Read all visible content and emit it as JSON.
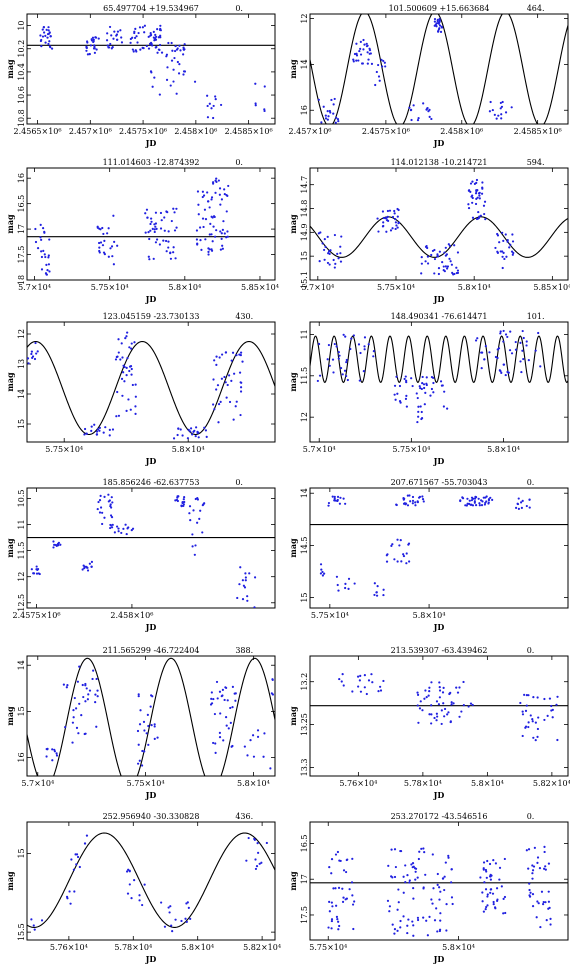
{
  "panels": [
    {
      "title": "65.497704 +19.534967",
      "period": "0.",
      "xlabel": "JD",
      "ylabel": "mag",
      "xlim": [
        2456400,
        2458750
      ],
      "ylim": [
        10.85,
        9.9
      ],
      "xticks": [
        {
          "v": 2456500,
          "label": "2.4565×10⁶"
        },
        {
          "v": 2457000,
          "label": "2.457×10⁶"
        },
        {
          "v": 2457500,
          "label": "2.4575×10⁶"
        },
        {
          "v": 2458000,
          "label": "2.458×10⁶"
        },
        {
          "v": 2458500,
          "label": "2.4585×10⁶"
        }
      ],
      "yticks": [
        {
          "v": 10,
          "label": "10"
        },
        {
          "v": 10.2,
          "label": "10.2"
        },
        {
          "v": 10.4,
          "label": "10.4"
        },
        {
          "v": 10.6,
          "label": "10.6"
        },
        {
          "v": 10.8,
          "label": "10.8"
        }
      ],
      "model": {
        "type": "flat",
        "mean": 10.17,
        "amp": 0,
        "period": 0,
        "phase": 0
      },
      "clusters": [
        {
          "x0": 2456520,
          "x1": 2456640,
          "y0": 10.0,
          "y1": 10.2,
          "n": 25
        },
        {
          "x0": 2456960,
          "x1": 2457080,
          "y0": 10.1,
          "y1": 10.25,
          "n": 25
        },
        {
          "x0": 2457150,
          "x1": 2457300,
          "y0": 10.0,
          "y1": 10.2,
          "n": 20
        },
        {
          "x0": 2457380,
          "x1": 2457680,
          "y0": 10.0,
          "y1": 10.25,
          "n": 55
        },
        {
          "x0": 2457720,
          "x1": 2457900,
          "y0": 10.15,
          "y1": 10.4,
          "n": 25
        },
        {
          "x0": 2457550,
          "x1": 2458000,
          "y0": 10.3,
          "y1": 10.6,
          "n": 12
        },
        {
          "x0": 2458100,
          "x1": 2458250,
          "y0": 10.6,
          "y1": 10.85,
          "n": 10
        },
        {
          "x0": 2458560,
          "x1": 2458660,
          "y0": 10.5,
          "y1": 10.75,
          "n": 6
        }
      ]
    },
    {
      "title": "101.500609 +15.663684",
      "period": "464.",
      "xlabel": "JD",
      "ylabel": "mag",
      "xlim": [
        2457000,
        2458700
      ],
      "ylim": [
        16.6,
        11.8
      ],
      "xticks": [
        {
          "v": 2457000,
          "label": "2.457×10⁶"
        },
        {
          "v": 2457500,
          "label": "2.4575×10⁶"
        },
        {
          "v": 2458000,
          "label": "2.458×10⁶"
        },
        {
          "v": 2458500,
          "label": "2.4585×10⁶"
        }
      ],
      "yticks": [
        {
          "v": 12,
          "label": "12"
        },
        {
          "v": 14,
          "label": "14"
        },
        {
          "v": 16,
          "label": "16"
        }
      ],
      "model": {
        "type": "sine",
        "mean": 14.2,
        "amp": 2.5,
        "period": 464,
        "phase": 2457360
      },
      "clusters": [
        {
          "x0": 2457050,
          "x1": 2457200,
          "y0": 15.5,
          "y1": 16.6,
          "n": 18
        },
        {
          "x0": 2457280,
          "x1": 2457420,
          "y0": 12.9,
          "y1": 14.0,
          "n": 28
        },
        {
          "x0": 2457420,
          "x1": 2457500,
          "y0": 13.5,
          "y1": 15.0,
          "n": 10
        },
        {
          "x0": 2457650,
          "x1": 2457800,
          "y0": 15.5,
          "y1": 16.5,
          "n": 15
        },
        {
          "x0": 2457820,
          "x1": 2457870,
          "y0": 11.9,
          "y1": 12.6,
          "n": 22
        },
        {
          "x0": 2458180,
          "x1": 2458330,
          "y0": 15.6,
          "y1": 16.4,
          "n": 14
        }
      ]
    },
    {
      "title": "111.014603 -12.874392",
      "period": "0.",
      "xlabel": "JD",
      "ylabel": "mag",
      "xlim": [
        56950,
        58600
      ],
      "ylim": [
        18,
        15.8
      ],
      "xticks": [
        {
          "v": 57000,
          "label": "5.7×10⁴"
        },
        {
          "v": 57500,
          "label": "5.75×10⁴"
        },
        {
          "v": 58000,
          "label": "5.8×10⁴"
        },
        {
          "v": 58500,
          "label": "5.85×10⁴"
        }
      ],
      "yticks": [
        {
          "v": 16,
          "label": "16"
        },
        {
          "v": 16.5,
          "label": "16.5"
        },
        {
          "v": 17,
          "label": "17"
        },
        {
          "v": 17.5,
          "label": "17.5"
        },
        {
          "v": 18,
          "label": "18"
        }
      ],
      "model": {
        "type": "flat",
        "mean": 17.15,
        "amp": 0,
        "period": 0,
        "phase": 0
      },
      "clusters": [
        {
          "x0": 57000,
          "x1": 57100,
          "y0": 16.9,
          "y1": 17.9,
          "n": 25
        },
        {
          "x0": 57420,
          "x1": 57560,
          "y0": 16.7,
          "y1": 17.7,
          "n": 25
        },
        {
          "x0": 57730,
          "x1": 57950,
          "y0": 16.6,
          "y1": 17.6,
          "n": 50
        },
        {
          "x0": 58080,
          "x1": 58300,
          "y0": 16.0,
          "y1": 17.5,
          "n": 70
        }
      ]
    },
    {
      "title": "114.012138 -10.214721",
      "period": "594.",
      "xlabel": "JD",
      "ylabel": "mag",
      "xlim": [
        56950,
        58600
      ],
      "ylim": [
        15.1,
        14.63
      ],
      "xticks": [
        {
          "v": 57000,
          "label": "5.7×10⁴"
        },
        {
          "v": 57500,
          "label": "5.75×10⁴"
        },
        {
          "v": 58000,
          "label": "5.8×10⁴"
        },
        {
          "v": 58500,
          "label": "5.85×10⁴"
        }
      ],
      "yticks": [
        {
          "v": 14.7,
          "label": "14.7"
        },
        {
          "v": 14.8,
          "label": "14.8"
        },
        {
          "v": 14.9,
          "label": "14.9"
        },
        {
          "v": 15,
          "label": "15"
        },
        {
          "v": 15.1,
          "label": "15.1"
        }
      ],
      "model": {
        "type": "sine",
        "mean": 14.92,
        "amp": 0.085,
        "period": 594,
        "phase": 57450
      },
      "clusters": [
        {
          "x0": 57000,
          "x1": 57150,
          "y0": 14.9,
          "y1": 15.05,
          "n": 25
        },
        {
          "x0": 57380,
          "x1": 57520,
          "y0": 14.8,
          "y1": 14.9,
          "n": 30
        },
        {
          "x0": 57650,
          "x1": 57900,
          "y0": 14.95,
          "y1": 15.08,
          "n": 45
        },
        {
          "x0": 57960,
          "x1": 58080,
          "y0": 14.68,
          "y1": 14.85,
          "n": 40
        },
        {
          "x0": 58120,
          "x1": 58250,
          "y0": 14.9,
          "y1": 15.05,
          "n": 25
        }
      ]
    },
    {
      "title": "123.045159 -23.730133",
      "period": "430.",
      "xlabel": "JD",
      "ylabel": "mag",
      "xlim": [
        57350,
        58350
      ],
      "ylim": [
        15.6,
        11.6
      ],
      "xticks": [
        {
          "v": 57500,
          "label": "5.75×10⁴"
        },
        {
          "v": 58000,
          "label": "5.8×10⁴"
        }
      ],
      "yticks": [
        {
          "v": 12,
          "label": "12"
        },
        {
          "v": 13,
          "label": "13"
        },
        {
          "v": 14,
          "label": "14"
        },
        {
          "v": 15,
          "label": "15"
        }
      ],
      "model": {
        "type": "sine",
        "mean": 13.8,
        "amp": 1.55,
        "period": 430,
        "phase": 57385
      },
      "clusters": [
        {
          "x0": 57350,
          "x1": 57400,
          "y0": 12.3,
          "y1": 13.0,
          "n": 10
        },
        {
          "x0": 57580,
          "x1": 57700,
          "y0": 15.0,
          "y1": 15.4,
          "n": 18
        },
        {
          "x0": 57700,
          "x1": 57790,
          "y0": 11.8,
          "y1": 14.8,
          "n": 40
        },
        {
          "x0": 57930,
          "x1": 58080,
          "y0": 15.1,
          "y1": 15.5,
          "n": 22
        },
        {
          "x0": 58100,
          "x1": 58220,
          "y0": 12.6,
          "y1": 15.0,
          "n": 40
        }
      ]
    },
    {
      "title": "148.490341 -76.614471",
      "period": "101.",
      "xlabel": "JD",
      "ylabel": "mag",
      "xlim": [
        56950,
        58350
      ],
      "ylim": [
        12.3,
        10.85
      ],
      "xticks": [
        {
          "v": 57000,
          "label": "5.7×10⁴"
        },
        {
          "v": 57500,
          "label": "5.75×10⁴"
        },
        {
          "v": 58000,
          "label": "5.8×10⁴"
        }
      ],
      "yticks": [
        {
          "v": 11,
          "label": "11"
        },
        {
          "v": 11.5,
          "label": "11.5"
        },
        {
          "v": 12,
          "label": "12"
        }
      ],
      "model": {
        "type": "sine",
        "mean": 11.3,
        "amp": 0.28,
        "period": 101,
        "phase": 56980
      },
      "clusters": [
        {
          "x0": 56980,
          "x1": 57300,
          "y0": 11.0,
          "y1": 11.6,
          "n": 35
        },
        {
          "x0": 57400,
          "x1": 57700,
          "y0": 11.5,
          "y1": 11.9,
          "n": 45
        },
        {
          "x0": 57520,
          "x1": 57560,
          "y0": 11.9,
          "y1": 12.3,
          "n": 6
        },
        {
          "x0": 57850,
          "x1": 58200,
          "y0": 10.95,
          "y1": 11.5,
          "n": 45
        }
      ]
    },
    {
      "title": "185.856246 -62.637753",
      "period": "0.",
      "xlabel": "JD",
      "ylabel": "mag",
      "xlim": [
        2457450,
        2458750
      ],
      "ylim": [
        12.6,
        10.3
      ],
      "xticks": [
        {
          "v": 2457500,
          "label": "2.4575×10⁶"
        },
        {
          "v": 2458000,
          "label": "2.458×10⁶"
        }
      ],
      "yticks": [
        {
          "v": 10.5,
          "label": "10.5"
        },
        {
          "v": 11,
          "label": "11"
        },
        {
          "v": 11.5,
          "label": "11.5"
        },
        {
          "v": 12,
          "label": "12"
        },
        {
          "v": 12.5,
          "label": "12.5"
        }
      ],
      "model": {
        "type": "flat",
        "mean": 11.25,
        "amp": 0,
        "period": 0,
        "phase": 0
      },
      "clusters": [
        {
          "x0": 2457470,
          "x1": 2457520,
          "y0": 11.8,
          "y1": 11.95,
          "n": 10
        },
        {
          "x0": 2457580,
          "x1": 2457640,
          "y0": 11.3,
          "y1": 11.45,
          "n": 10
        },
        {
          "x0": 2457740,
          "x1": 2457800,
          "y0": 11.7,
          "y1": 11.9,
          "n": 12
        },
        {
          "x0": 2457820,
          "x1": 2457900,
          "y0": 10.4,
          "y1": 11.1,
          "n": 25
        },
        {
          "x0": 2457900,
          "x1": 2458010,
          "y0": 11.0,
          "y1": 11.3,
          "n": 12
        },
        {
          "x0": 2458200,
          "x1": 2458280,
          "y0": 10.45,
          "y1": 10.65,
          "n": 15
        },
        {
          "x0": 2458290,
          "x1": 2458380,
          "y0": 10.4,
          "y1": 11.6,
          "n": 18
        },
        {
          "x0": 2458550,
          "x1": 2458650,
          "y0": 11.8,
          "y1": 12.6,
          "n": 15
        }
      ]
    },
    {
      "title": "207.671567 -55.703043",
      "period": "0.",
      "xlabel": "JD",
      "ylabel": "mag",
      "xlim": [
        57400,
        58700
      ],
      "ylim": [
        15.1,
        13.95
      ],
      "xticks": [
        {
          "v": 57500,
          "label": "5.75×10⁴"
        },
        {
          "v": 58000,
          "label": "5.8×10⁴"
        }
      ],
      "yticks": [
        {
          "v": 14,
          "label": "14"
        },
        {
          "v": 14.5,
          "label": "14.5"
        },
        {
          "v": 15,
          "label": "15"
        }
      ],
      "model": {
        "type": "flat",
        "mean": 14.3,
        "amp": 0,
        "period": 0,
        "phase": 0
      },
      "clusters": [
        {
          "x0": 57450,
          "x1": 57580,
          "y0": 14.03,
          "y1": 14.12,
          "n": 15
        },
        {
          "x0": 57450,
          "x1": 57480,
          "y0": 14.6,
          "y1": 14.8,
          "n": 6
        },
        {
          "x0": 57530,
          "x1": 57650,
          "y0": 14.8,
          "y1": 14.95,
          "n": 8
        },
        {
          "x0": 57700,
          "x1": 57780,
          "y0": 14.85,
          "y1": 15.05,
          "n": 8
        },
        {
          "x0": 57780,
          "x1": 57900,
          "y0": 14.4,
          "y1": 14.7,
          "n": 18
        },
        {
          "x0": 57830,
          "x1": 57980,
          "y0": 14.02,
          "y1": 14.12,
          "n": 25
        },
        {
          "x0": 58150,
          "x1": 58320,
          "y0": 14.03,
          "y1": 14.12,
          "n": 40
        },
        {
          "x0": 58430,
          "x1": 58520,
          "y0": 14.05,
          "y1": 14.15,
          "n": 12
        }
      ]
    },
    {
      "title": "211.565299 -46.722404",
      "period": "388.",
      "xlabel": "JD",
      "ylabel": "mag",
      "xlim": [
        56950,
        58100
      ],
      "ylim": [
        16.4,
        13.8
      ],
      "xticks": [
        {
          "v": 57000,
          "label": "5.7×10⁴"
        },
        {
          "v": 57500,
          "label": "5.75×10⁴"
        },
        {
          "v": 58000,
          "label": "5.8×10⁴"
        }
      ],
      "yticks": [
        {
          "v": 14,
          "label": "14"
        },
        {
          "v": 15,
          "label": "15"
        },
        {
          "v": 16,
          "label": "16"
        }
      ],
      "model": {
        "type": "sine",
        "mean": 15.25,
        "amp": 1.4,
        "period": 388,
        "phase": 57230
      },
      "clusters": [
        {
          "x0": 57040,
          "x1": 57090,
          "y0": 15.8,
          "y1": 16.1,
          "n": 10
        },
        {
          "x0": 57120,
          "x1": 57280,
          "y0": 14.0,
          "y1": 15.8,
          "n": 35
        },
        {
          "x0": 57460,
          "x1": 57560,
          "y0": 14.6,
          "y1": 16.2,
          "n": 25
        },
        {
          "x0": 57800,
          "x1": 57920,
          "y0": 14.3,
          "y1": 16.0,
          "n": 35
        },
        {
          "x0": 57960,
          "x1": 58090,
          "y0": 15.4,
          "y1": 16.3,
          "n": 10
        },
        {
          "x0": 58080,
          "x1": 58100,
          "y0": 14.3,
          "y1": 14.8,
          "n": 4
        }
      ]
    },
    {
      "title": "213.539307 -63.439462",
      "period": "0.",
      "xlabel": "JD",
      "ylabel": "mag",
      "xlim": [
        57450,
        58250
      ],
      "ylim": [
        13.31,
        13.17
      ],
      "xticks": [
        {
          "v": 57600,
          "label": "5.76×10⁴"
        },
        {
          "v": 57800,
          "label": "5.78×10⁴"
        },
        {
          "v": 58000,
          "label": "5.8×10⁴"
        },
        {
          "v": 58200,
          "label": "5.82×10⁴"
        }
      ],
      "yticks": [
        {
          "v": 13.2,
          "label": "13.2"
        },
        {
          "v": 13.25,
          "label": "13.25"
        },
        {
          "v": 13.3,
          "label": "13.3"
        }
      ],
      "model": {
        "type": "flat",
        "mean": 13.228,
        "amp": 0,
        "period": 0,
        "phase": 0
      },
      "clusters": [
        {
          "x0": 57540,
          "x1": 57700,
          "y0": 13.19,
          "y1": 13.215,
          "n": 20
        },
        {
          "x0": 57780,
          "x1": 57960,
          "y0": 13.2,
          "y1": 13.25,
          "n": 55
        },
        {
          "x0": 58100,
          "x1": 58220,
          "y0": 13.215,
          "y1": 13.27,
          "n": 35
        }
      ]
    },
    {
      "title": "252.956940 -30.330828",
      "period": "436.",
      "xlabel": "JD",
      "ylabel": "mag",
      "xlim": [
        57470,
        58240
      ],
      "ylim": [
        15.55,
        14.8
      ],
      "xticks": [
        {
          "v": 57600,
          "label": "5.76×10⁴"
        },
        {
          "v": 57800,
          "label": "5.78×10⁴"
        },
        {
          "v": 58000,
          "label": "5.8×10⁴"
        },
        {
          "v": 58200,
          "label": "5.82×10⁴"
        }
      ],
      "yticks": [
        {
          "v": 15,
          "label": "15"
        },
        {
          "v": 15.5,
          "label": "15.5"
        }
      ],
      "model": {
        "type": "sine",
        "mean": 15.17,
        "amp": 0.3,
        "period": 436,
        "phase": 57710
      },
      "clusters": [
        {
          "x0": 57480,
          "x1": 57520,
          "y0": 15.4,
          "y1": 15.5,
          "n": 4
        },
        {
          "x0": 57580,
          "x1": 57640,
          "y0": 15.0,
          "y1": 15.35,
          "n": 12
        },
        {
          "x0": 57640,
          "x1": 57660,
          "y0": 14.85,
          "y1": 14.95,
          "n": 3
        },
        {
          "x0": 57780,
          "x1": 57840,
          "y0": 15.05,
          "y1": 15.35,
          "n": 12
        },
        {
          "x0": 57880,
          "x1": 57980,
          "y0": 15.3,
          "y1": 15.5,
          "n": 15
        },
        {
          "x0": 58150,
          "x1": 58230,
          "y0": 14.9,
          "y1": 15.1,
          "n": 12
        }
      ]
    },
    {
      "title": "253.270172 -43.546516",
      "period": "0.",
      "xlabel": "JD",
      "ylabel": "mag",
      "xlim": [
        57430,
        58420
      ],
      "ylim": [
        17.85,
        16.2
      ],
      "xticks": [
        {
          "v": 57500,
          "label": "5.75×10⁴"
        },
        {
          "v": 58000,
          "label": "5.8×10⁴"
        }
      ],
      "yticks": [
        {
          "v": 16.5,
          "label": "16.5"
        },
        {
          "v": 17,
          "label": "17"
        },
        {
          "v": 17.5,
          "label": "17.5"
        }
      ],
      "model": {
        "type": "flat",
        "mean": 17.05,
        "amp": 0,
        "period": 0,
        "phase": 0
      },
      "clusters": [
        {
          "x0": 57500,
          "x1": 57600,
          "y0": 16.6,
          "y1": 17.7,
          "n": 40
        },
        {
          "x0": 57720,
          "x1": 57980,
          "y0": 16.5,
          "y1": 17.8,
          "n": 90
        },
        {
          "x0": 58080,
          "x1": 58180,
          "y0": 16.7,
          "y1": 17.5,
          "n": 45
        },
        {
          "x0": 58260,
          "x1": 58360,
          "y0": 16.5,
          "y1": 17.7,
          "n": 40
        }
      ]
    }
  ],
  "colors": {
    "points": "#2020e0",
    "model": "#000000",
    "axis": "#000000"
  }
}
